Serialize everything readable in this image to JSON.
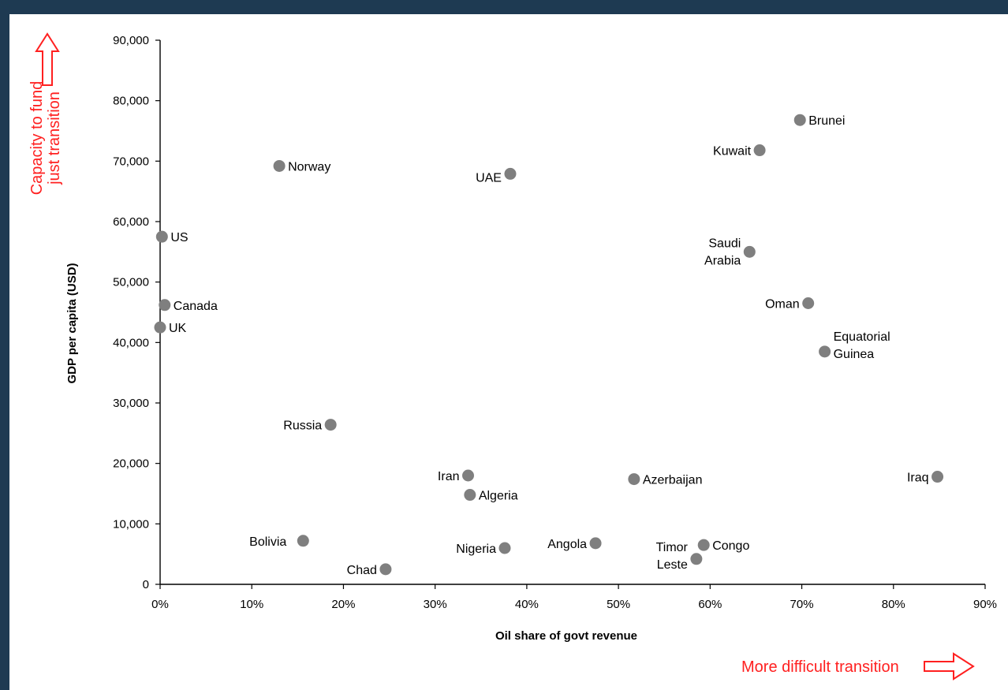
{
  "chart_data": {
    "type": "scatter",
    "xlabel": "Oil share of govt revenue",
    "ylabel": "GDP per capita  (USD)",
    "xlim": [
      0,
      90
    ],
    "ylim": [
      0,
      90000
    ],
    "x_ticks": [
      "0%",
      "10%",
      "20%",
      "30%",
      "40%",
      "50%",
      "60%",
      "70%",
      "80%",
      "90%"
    ],
    "y_ticks": [
      "0",
      "10,000",
      "20,000",
      "30,000",
      "40,000",
      "50,000",
      "60,000",
      "70,000",
      "80,000",
      "90,000"
    ],
    "grid": false,
    "marker_color": "#7f7f7f",
    "points": [
      {
        "label": "Brunei",
        "x": 69.8,
        "y": 76800
      },
      {
        "label": "Kuwait",
        "x": 65.4,
        "y": 71800
      },
      {
        "label": "Norway",
        "x": 13.0,
        "y": 69200
      },
      {
        "label": "UAE",
        "x": 38.2,
        "y": 67900
      },
      {
        "label": "US",
        "x": 0.2,
        "y": 57500
      },
      {
        "label": "Saudi Arabia",
        "x": 64.3,
        "y": 55000
      },
      {
        "label": "Oman",
        "x": 70.7,
        "y": 46500
      },
      {
        "label": "Canada",
        "x": 0.5,
        "y": 46200
      },
      {
        "label": "UK",
        "x": 0.0,
        "y": 42500
      },
      {
        "label": "Equatorial Guinea",
        "x": 72.5,
        "y": 38500
      },
      {
        "label": "Russia",
        "x": 18.6,
        "y": 26400
      },
      {
        "label": "Iran",
        "x": 33.6,
        "y": 18000
      },
      {
        "label": "Iraq",
        "x": 84.8,
        "y": 17800
      },
      {
        "label": "Azerbaijan",
        "x": 51.7,
        "y": 17400
      },
      {
        "label": "Algeria",
        "x": 33.8,
        "y": 14800
      },
      {
        "label": "Bolivia",
        "x": 15.6,
        "y": 7200
      },
      {
        "label": "Angola",
        "x": 47.5,
        "y": 6800
      },
      {
        "label": "Congo",
        "x": 59.3,
        "y": 6500
      },
      {
        "label": "Nigeria",
        "x": 37.6,
        "y": 6000
      },
      {
        "label": "Timor Leste",
        "x": 58.5,
        "y": 4200
      },
      {
        "label": "Chad",
        "x": 24.6,
        "y": 2500
      }
    ]
  },
  "annotations": {
    "vertical_arrow_label_line1": "Capacity to fund",
    "vertical_arrow_label_line2": "just transition",
    "horizontal_arrow_label": "More difficult transition",
    "color": "#ff2020"
  }
}
